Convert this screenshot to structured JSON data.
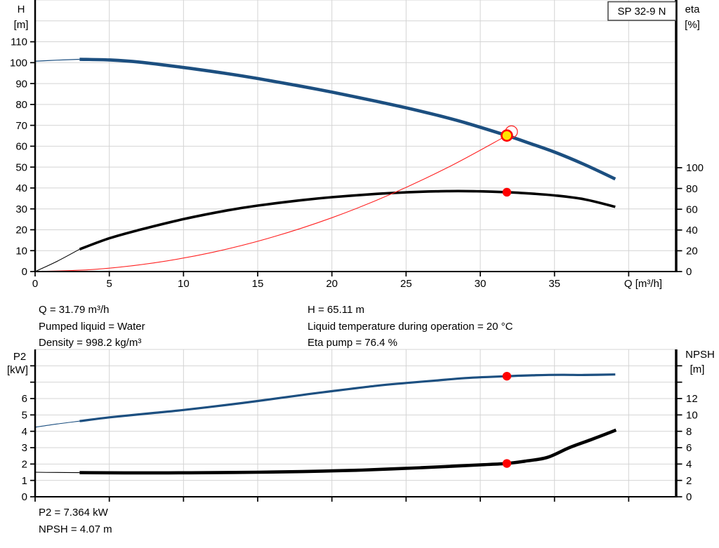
{
  "pump_label": "SP 32-9 N",
  "operating_point_info": {
    "left_column": [
      "Q = 31.79 m³/h",
      "Pumped liquid = Water",
      "Density = 998.2 kg/m³"
    ],
    "right_column": [
      "H = 65.11 m",
      "Liquid temperature during operation = 20 °C",
      "Eta pump = 76.4 %"
    ]
  },
  "power_info": [
    "P2 = 7.364 kW",
    "NPSH = 4.07 m"
  ],
  "colors": {
    "curve_blue": "#1c4f80",
    "curve_black": "#000000",
    "curve_red": "#ff2222",
    "marker_red": "#ff0000",
    "marker_yellow": "#ffe400",
    "grid": "#d4d4d4",
    "axis": "#000000",
    "text": "#000000",
    "box_border": "#444444"
  },
  "chart_data": [
    {
      "id": "qh-eta-chart",
      "type": "line",
      "title": "SP 32-9 N",
      "x_axis": {
        "label": "Q [m³/h]",
        "min": 0,
        "max": 43.2,
        "labeled_ticks": [
          0,
          5,
          10,
          15,
          20,
          25,
          30,
          35
        ],
        "unlabeled_ticks": [
          40
        ],
        "grid": [
          5,
          10,
          15,
          20,
          25,
          30,
          35,
          40
        ]
      },
      "y_left": {
        "name": "H",
        "unit": "[m]",
        "min": 0,
        "max": 130,
        "labeled_ticks": [
          0,
          10,
          20,
          30,
          40,
          50,
          60,
          70,
          80,
          90,
          100,
          110
        ],
        "unlabeled_ticks": [],
        "grid": [
          10,
          20,
          30,
          40,
          50,
          60,
          70,
          80,
          90,
          100,
          110,
          120,
          130
        ]
      },
      "y_right": {
        "name": "eta",
        "unit": "[%]",
        "min": 0,
        "max": 261.5,
        "labeled_ticks": [
          0,
          20,
          40,
          60,
          80,
          100
        ],
        "unlabeled_ticks": []
      },
      "series": [
        {
          "name": "head-curve",
          "axis": "left",
          "color": "curve_blue",
          "segments": [
            {
              "width": 1.2,
              "points": [
                [
                  0,
                  100.7
                ],
                [
                  1.5,
                  101.2
                ],
                [
                  3,
                  101.6
                ]
              ]
            },
            {
              "width": 4.6,
              "points": [
                [
                  3,
                  101.6
                ],
                [
                  5,
                  101.3
                ],
                [
                  7,
                  100.3
                ],
                [
                  10,
                  97.7
                ],
                [
                  13,
                  94.7
                ],
                [
                  15,
                  92.4
                ],
                [
                  18,
                  88.6
                ],
                [
                  20,
                  85.9
                ],
                [
                  23,
                  81.5
                ],
                [
                  25,
                  78.4
                ],
                [
                  27,
                  75.0
                ],
                [
                  29,
                  71.2
                ],
                [
                  31.79,
                  65.11
                ],
                [
                  33,
                  62.2
                ],
                [
                  35,
                  57.2
                ],
                [
                  37,
                  51.3
                ],
                [
                  39.1,
                  44.3
                ]
              ]
            }
          ]
        },
        {
          "name": "efficiency-curve",
          "axis": "right",
          "color": "curve_black",
          "segments": [
            {
              "width": 1.1,
              "points": [
                [
                  0,
                  0
                ],
                [
                  1.5,
                  10
                ],
                [
                  3,
                  21.5
                ]
              ]
            },
            {
              "width": 3.6,
              "points": [
                [
                  3,
                  21.5
                ],
                [
                  5,
                  32
                ],
                [
                  7,
                  40
                ],
                [
                  10,
                  50.5
                ],
                [
                  13,
                  59
                ],
                [
                  15,
                  63.5
                ],
                [
                  18,
                  68.8
                ],
                [
                  20,
                  71.6
                ],
                [
                  23,
                  74.8
                ],
                [
                  25,
                  76.3
                ],
                [
                  27,
                  77.2
                ],
                [
                  28.5,
                  77.5
                ],
                [
                  30,
                  77.2
                ],
                [
                  31.79,
                  76.4
                ],
                [
                  33,
                  75.5
                ],
                [
                  35,
                  73.3
                ],
                [
                  37,
                  69.6
                ],
                [
                  39.1,
                  62.3
                ]
              ]
            }
          ]
        },
        {
          "name": "system-curve",
          "axis": "left",
          "color": "curve_red",
          "segments": [
            {
              "width": 1.1,
              "points": [
                [
                  0,
                  0
                ],
                [
                  4,
                  1.03
                ],
                [
                  8,
                  4.12
                ],
                [
                  12,
                  9.28
                ],
                [
                  16,
                  16.49
                ],
                [
                  20,
                  25.77
                ],
                [
                  24,
                  37.11
                ],
                [
                  28,
                  50.52
                ],
                [
                  31.79,
                  65.11
                ]
              ]
            }
          ]
        }
      ],
      "markers": [
        {
          "name": "requested-duty-point",
          "axis": "left",
          "x": 32.1,
          "y": 66.9,
          "style": "red-ring"
        },
        {
          "name": "duty-point",
          "axis": "left",
          "x": 31.79,
          "y": 65.11,
          "style": "yellow-dot"
        },
        {
          "name": "efficiency-point",
          "axis": "right",
          "x": 31.79,
          "y": 76.4,
          "style": "red-dot"
        }
      ]
    },
    {
      "id": "p2-npsh-chart",
      "type": "line",
      "title": "",
      "x_axis": {
        "label": "",
        "min": 0,
        "max": 43.2,
        "labeled_ticks": [],
        "unlabeled_ticks": [
          0,
          5,
          10,
          15,
          20,
          25,
          30,
          35,
          40
        ],
        "grid": [
          5,
          10,
          15,
          20,
          25,
          30,
          35,
          40
        ]
      },
      "y_left": {
        "name": "P2",
        "unit": "[kW]",
        "min": 0,
        "max": 9,
        "labeled_ticks": [
          0,
          1,
          2,
          3,
          4,
          5,
          6
        ],
        "unlabeled_ticks": [
          7,
          8
        ],
        "grid": [
          1,
          2,
          3,
          4,
          5,
          6,
          7,
          8,
          9
        ]
      },
      "y_right": {
        "name": "NPSH",
        "unit": "[m]",
        "min": 0,
        "max": 18,
        "labeled_ticks": [
          0,
          2,
          4,
          6,
          8,
          10,
          12
        ],
        "unlabeled_ticks": [
          14,
          16
        ]
      },
      "series": [
        {
          "name": "p2-curve",
          "axis": "left",
          "color": "curve_blue",
          "segments": [
            {
              "width": 1.1,
              "points": [
                [
                  0,
                  4.25
                ],
                [
                  1.5,
                  4.45
                ],
                [
                  3,
                  4.62
                ]
              ]
            },
            {
              "width": 3.2,
              "points": [
                [
                  3,
                  4.62
                ],
                [
                  5,
                  4.85
                ],
                [
                  8,
                  5.12
                ],
                [
                  10,
                  5.3
                ],
                [
                  13,
                  5.62
                ],
                [
                  15,
                  5.85
                ],
                [
                  18,
                  6.22
                ],
                [
                  20,
                  6.45
                ],
                [
                  23,
                  6.78
                ],
                [
                  25,
                  6.95
                ],
                [
                  27,
                  7.1
                ],
                [
                  29,
                  7.25
                ],
                [
                  31.79,
                  7.364
                ],
                [
                  33.5,
                  7.42
                ],
                [
                  35.5,
                  7.45
                ],
                [
                  37,
                  7.44
                ],
                [
                  39.1,
                  7.47
                ]
              ]
            }
          ]
        },
        {
          "name": "npsh-curve",
          "axis": "right",
          "color": "curve_black",
          "segments": [
            {
              "width": 1.1,
              "points": [
                [
                  0,
                  3.0
                ],
                [
                  1.5,
                  2.97
                ],
                [
                  3,
                  2.95
                ]
              ]
            },
            {
              "width": 4.6,
              "points": [
                [
                  3,
                  2.95
                ],
                [
                  6,
                  2.92
                ],
                [
                  9,
                  2.92
                ],
                [
                  12,
                  2.95
                ],
                [
                  15,
                  3.0
                ],
                [
                  18,
                  3.08
                ],
                [
                  20,
                  3.16
                ],
                [
                  22,
                  3.26
                ],
                [
                  24,
                  3.4
                ],
                [
                  26,
                  3.55
                ],
                [
                  28,
                  3.72
                ],
                [
                  30,
                  3.9
                ],
                [
                  31.79,
                  4.07
                ],
                [
                  33,
                  4.35
                ],
                [
                  34.5,
                  4.8
                ],
                [
                  36,
                  6.0
                ],
                [
                  37.5,
                  7.0
                ],
                [
                  39.15,
                  8.15
                ]
              ]
            }
          ]
        }
      ],
      "markers": [
        {
          "name": "p2-point",
          "axis": "left",
          "x": 31.79,
          "y": 7.364,
          "style": "red-dot"
        },
        {
          "name": "npsh-point",
          "axis": "right",
          "x": 31.79,
          "y": 4.07,
          "style": "red-dot"
        }
      ]
    }
  ]
}
